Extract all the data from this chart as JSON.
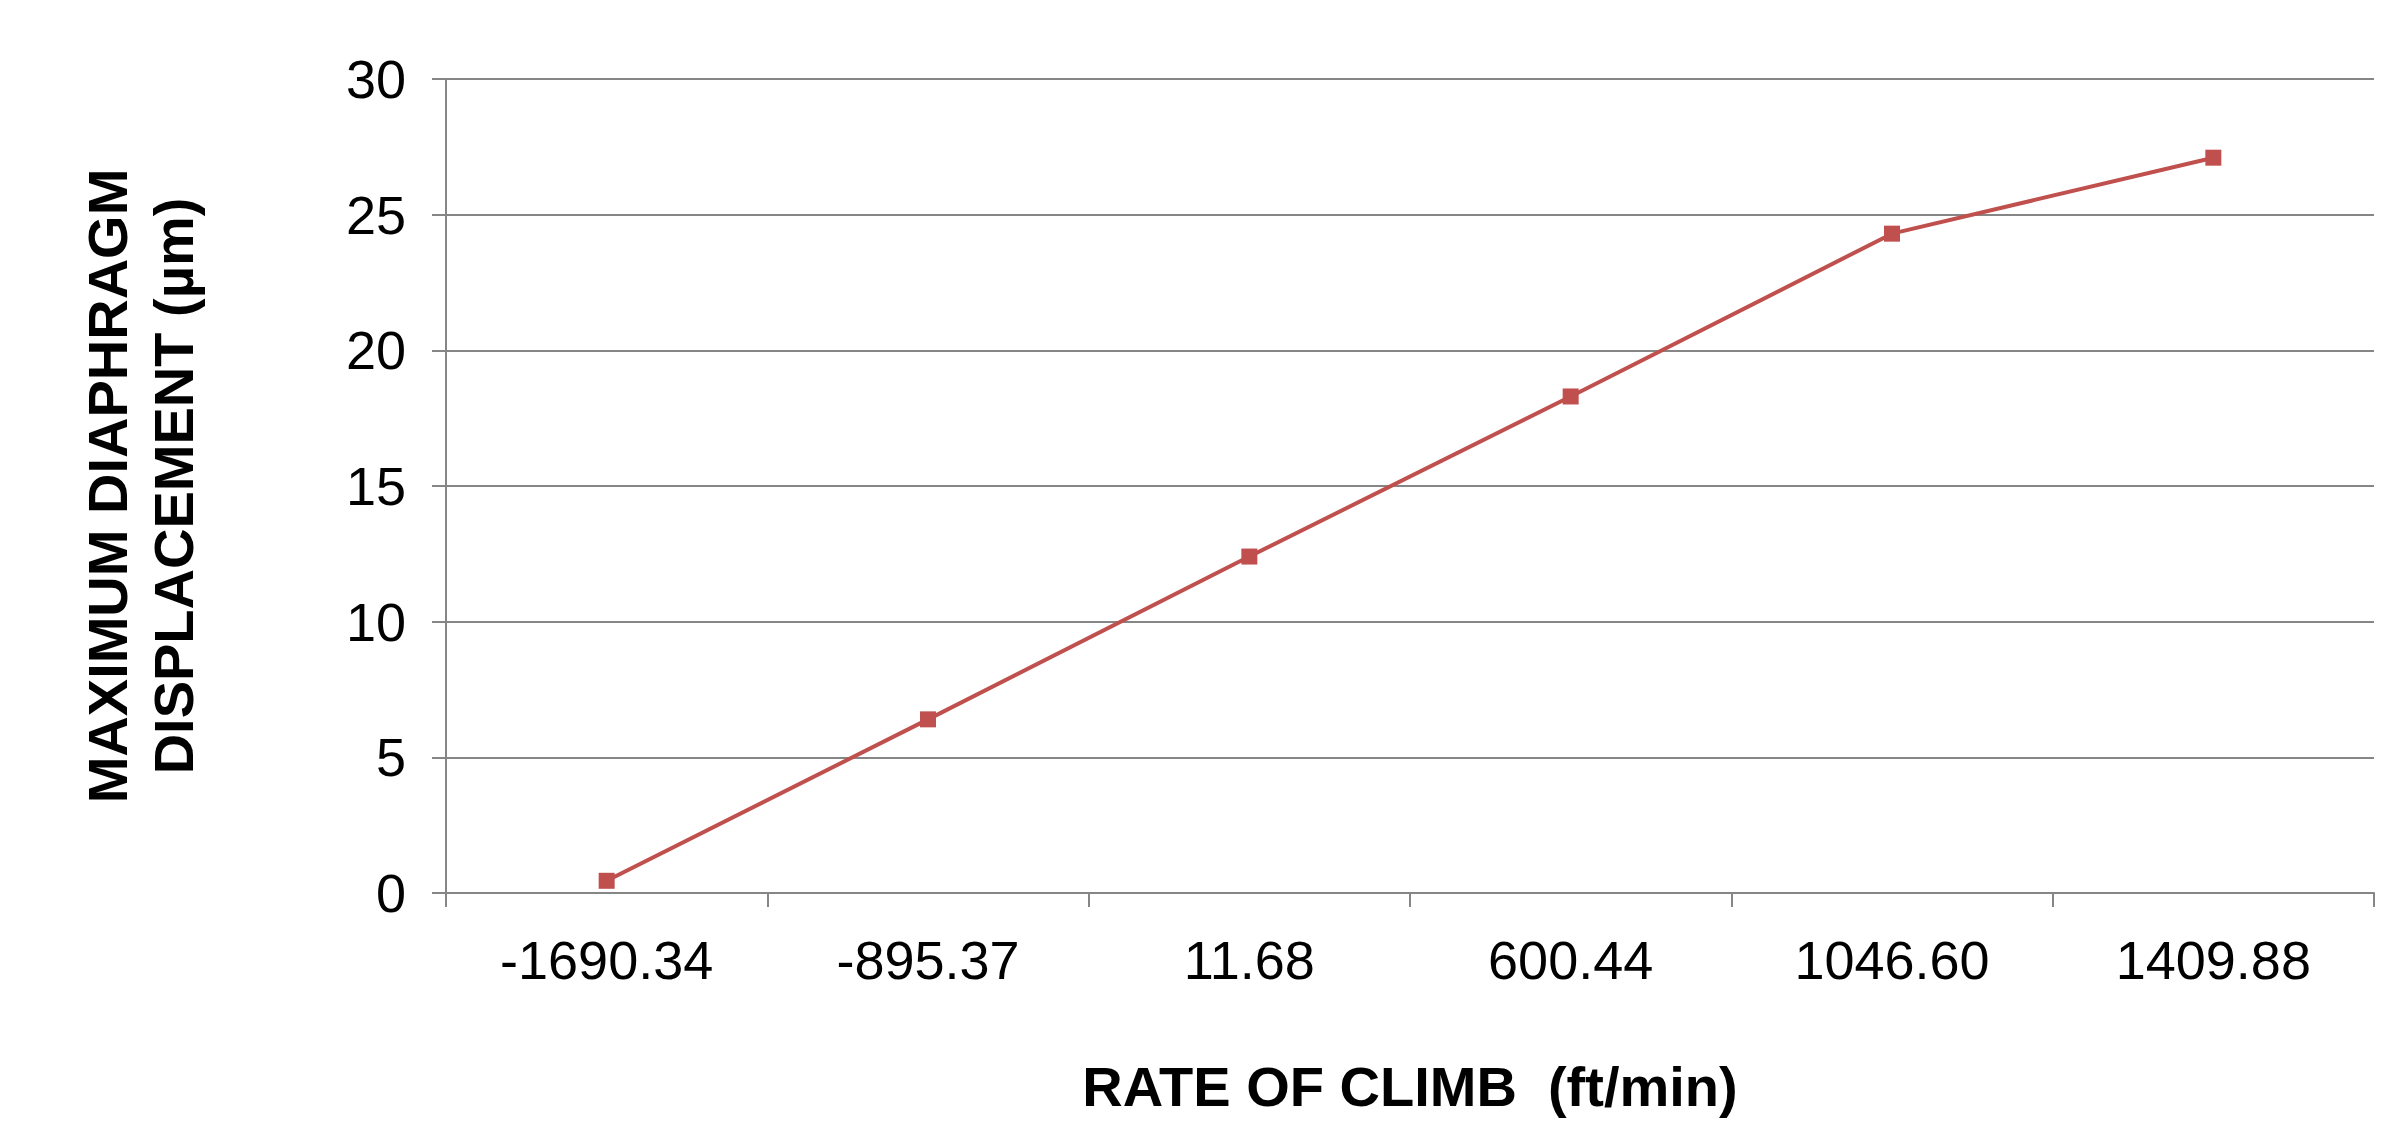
{
  "chart_data": {
    "type": "line",
    "xlabel": "RATE OF CLIMB  (ft/min)",
    "ylabel": "MAXIMUM DIAPHRAGM\nDISPLACEMENT (µm)",
    "categories": [
      "-1690.34",
      "-895.37",
      "11.68",
      "600.44",
      "1046.60",
      "1409.88"
    ],
    "series": [
      {
        "color": "#c0504d",
        "values": [
          0.45,
          6.4,
          12.4,
          18.3,
          24.3,
          27.1
        ]
      }
    ],
    "ylim": [
      0,
      30
    ],
    "yticks": [
      0,
      5,
      10,
      15,
      20,
      25,
      30
    ],
    "grid": "y",
    "marker": "square",
    "line_style": "solid"
  }
}
